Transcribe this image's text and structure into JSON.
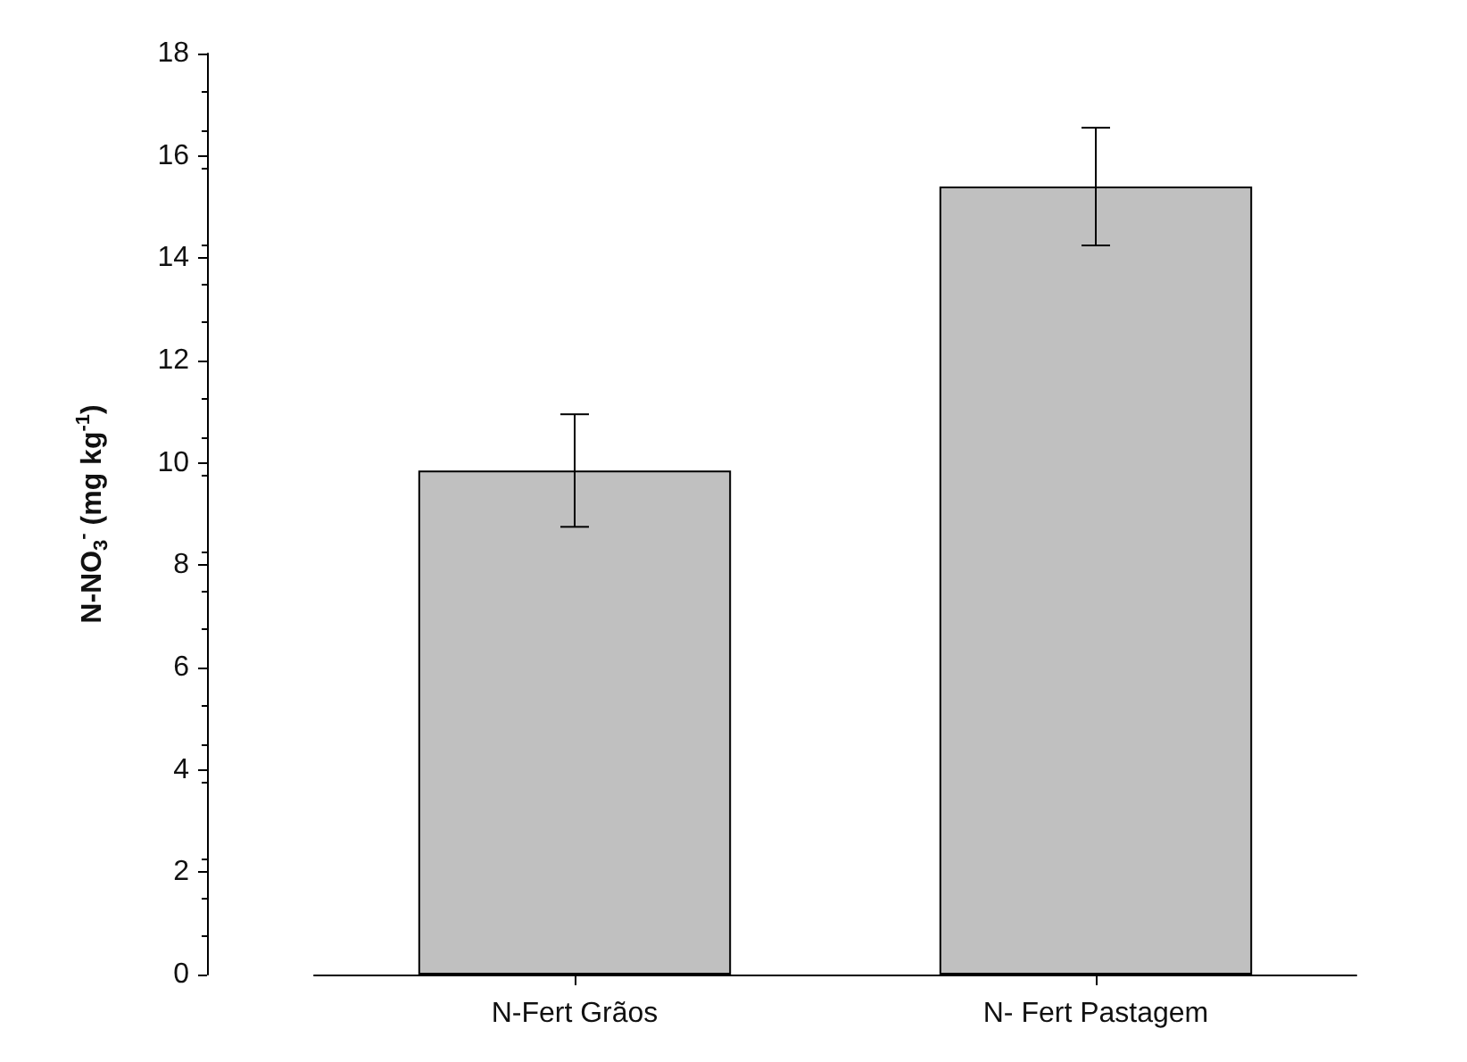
{
  "chart_data": {
    "type": "bar",
    "ylabel": "N-NO$_{3}$$^{-}$ (mg kg$^{-1}$)",
    "categories": [
      "N-Fert Grãos",
      "N- Fert Pastagem"
    ],
    "values": [
      9.85,
      15.4
    ],
    "errors": [
      1.1,
      1.15
    ],
    "color": "#c0c0c0",
    "ylim": [
      0,
      18
    ],
    "yticks": [
      0,
      2,
      4,
      6,
      8,
      10,
      12,
      14,
      16,
      18
    ],
    "grid": false
  }
}
